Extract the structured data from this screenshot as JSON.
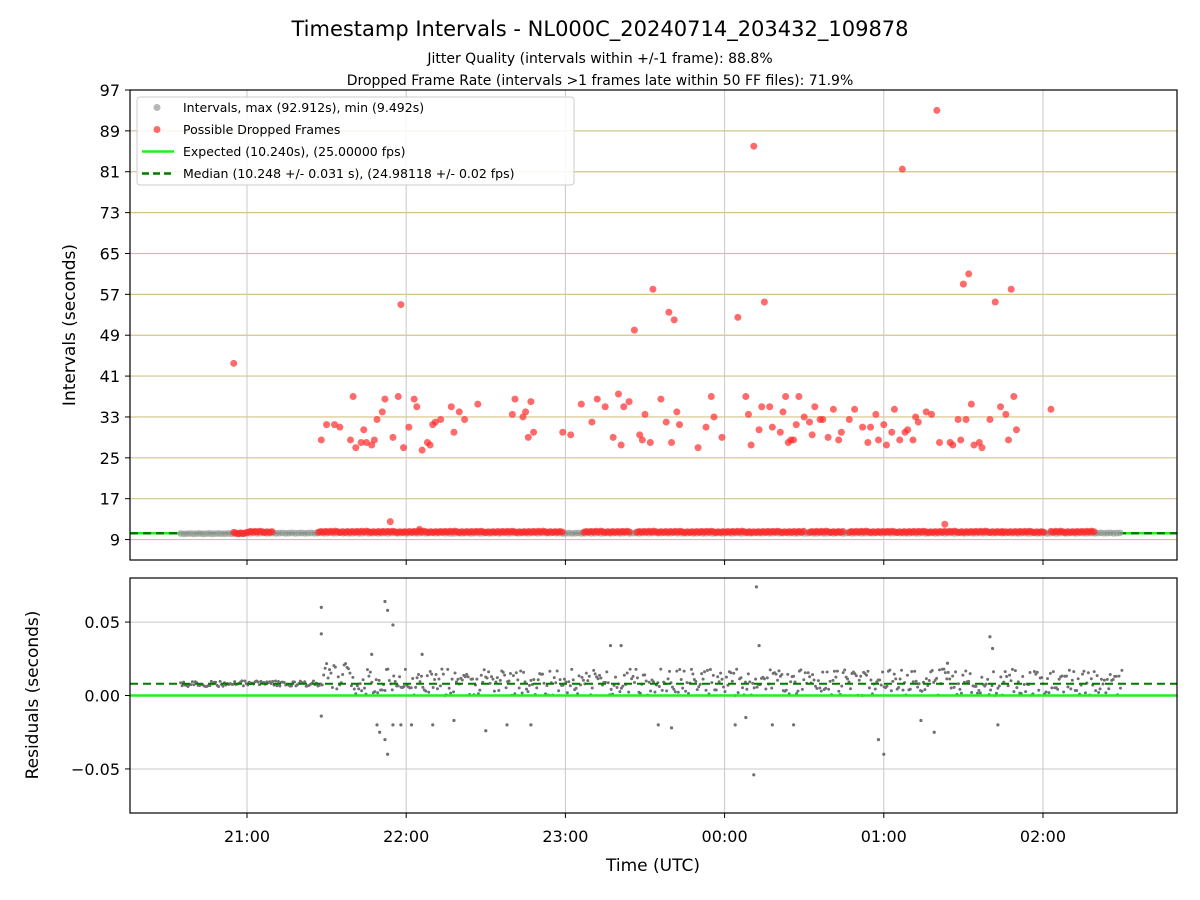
{
  "chart_data": {
    "type": "scatter",
    "title": "Timestamp Intervals - NL000C_20240714_203432_109878",
    "subtitles": [
      "Jitter Quality (intervals within +/-1 frame): 88.8%",
      "Dropped Frame Rate (intervals >1 frames late within 50 FF files): 71.9%"
    ],
    "xlabel": "Time (UTC)",
    "x_ticks": [
      "21:00",
      "22:00",
      "23:00",
      "00:00",
      "01:00",
      "02:00"
    ],
    "top_panel": {
      "ylabel": "Intervals (seconds)",
      "ylim": [
        5,
        97
      ],
      "y_ticks": [
        9,
        17,
        25,
        33,
        41,
        49,
        57,
        65,
        73,
        81,
        89,
        97
      ],
      "grid_horizontal": true,
      "grid_vertical": true,
      "legend_position": "upper-left",
      "legend": [
        "Intervals, max (92.912s), min (9.492s)",
        "Possible Dropped Frames",
        "Expected (10.240s), (25.00000 fps)",
        "Median (10.248 +/- 0.031 s), (24.98118 +/- 0.02 fps)"
      ],
      "expected_interval": 10.24,
      "median_interval": 10.248,
      "colors": {
        "normal": "#999999",
        "dropped": "#ff2b2b",
        "expected": "#22ee22",
        "median": "#007a00",
        "hgrid": "#d4c38a"
      },
      "dropped_points": [
        {
          "t": "20:55",
          "v": 43.5
        },
        {
          "t": "21:28",
          "v": 28.5
        },
        {
          "t": "21:30",
          "v": 31.5
        },
        {
          "t": "21:33",
          "v": 31.5
        },
        {
          "t": "21:35",
          "v": 31.0
        },
        {
          "t": "21:39",
          "v": 28.5
        },
        {
          "t": "21:40",
          "v": 37.0
        },
        {
          "t": "21:41",
          "v": 27.0
        },
        {
          "t": "21:43",
          "v": 28.0
        },
        {
          "t": "21:44",
          "v": 30.5
        },
        {
          "t": "21:45",
          "v": 28.0
        },
        {
          "t": "21:47",
          "v": 27.5
        },
        {
          "t": "21:48",
          "v": 28.5
        },
        {
          "t": "21:49",
          "v": 32.5
        },
        {
          "t": "21:51",
          "v": 34.0
        },
        {
          "t": "21:52",
          "v": 36.5
        },
        {
          "t": "21:54",
          "v": 12.5
        },
        {
          "t": "21:55",
          "v": 29.0
        },
        {
          "t": "21:57",
          "v": 37.0
        },
        {
          "t": "21:58",
          "v": 55.0
        },
        {
          "t": "21:59",
          "v": 27.0
        },
        {
          "t": "22:01",
          "v": 31.0
        },
        {
          "t": "22:03",
          "v": 36.5
        },
        {
          "t": "22:04",
          "v": 35.0
        },
        {
          "t": "22:05",
          "v": 11.0
        },
        {
          "t": "22:06",
          "v": 26.5
        },
        {
          "t": "22:08",
          "v": 28.0
        },
        {
          "t": "22:09",
          "v": 27.5
        },
        {
          "t": "22:10",
          "v": 31.5
        },
        {
          "t": "22:11",
          "v": 32.0
        },
        {
          "t": "22:13",
          "v": 32.5
        },
        {
          "t": "22:17",
          "v": 35.0
        },
        {
          "t": "22:18",
          "v": 30.0
        },
        {
          "t": "22:20",
          "v": 34.0
        },
        {
          "t": "22:22",
          "v": 32.5
        },
        {
          "t": "22:27",
          "v": 35.5
        },
        {
          "t": "22:40",
          "v": 33.5
        },
        {
          "t": "22:41",
          "v": 36.5
        },
        {
          "t": "22:44",
          "v": 33.0
        },
        {
          "t": "22:45",
          "v": 34.0
        },
        {
          "t": "22:46",
          "v": 29.0
        },
        {
          "t": "22:47",
          "v": 36.0
        },
        {
          "t": "22:48",
          "v": 30.0
        },
        {
          "t": "22:59",
          "v": 30.0
        },
        {
          "t": "23:02",
          "v": 29.5
        },
        {
          "t": "23:06",
          "v": 35.5
        },
        {
          "t": "23:10",
          "v": 32.0
        },
        {
          "t": "23:12",
          "v": 36.5
        },
        {
          "t": "23:15",
          "v": 35.0
        },
        {
          "t": "23:18",
          "v": 29.0
        },
        {
          "t": "23:20",
          "v": 37.5
        },
        {
          "t": "23:21",
          "v": 27.5
        },
        {
          "t": "23:22",
          "v": 35.0
        },
        {
          "t": "23:24",
          "v": 36.0
        },
        {
          "t": "23:26",
          "v": 50.0
        },
        {
          "t": "23:28",
          "v": 29.5
        },
        {
          "t": "23:29",
          "v": 28.5
        },
        {
          "t": "23:30",
          "v": 33.5
        },
        {
          "t": "23:32",
          "v": 28.0
        },
        {
          "t": "23:33",
          "v": 58.0
        },
        {
          "t": "23:36",
          "v": 36.5
        },
        {
          "t": "23:38",
          "v": 32.0
        },
        {
          "t": "23:39",
          "v": 53.5
        },
        {
          "t": "23:41",
          "v": 52.0
        },
        {
          "t": "23:40",
          "v": 28.0
        },
        {
          "t": "23:42",
          "v": 34.0
        },
        {
          "t": "23:43",
          "v": 31.5
        },
        {
          "t": "23:50",
          "v": 27.0
        },
        {
          "t": "23:53",
          "v": 31.0
        },
        {
          "t": "23:55",
          "v": 37.0
        },
        {
          "t": "23:56",
          "v": 33.0
        },
        {
          "t": "23:59",
          "v": 29.0
        },
        {
          "t": "00:05",
          "v": 52.5
        },
        {
          "t": "00:08",
          "v": 37.0
        },
        {
          "t": "00:09",
          "v": 33.5
        },
        {
          "t": "00:10",
          "v": 27.5
        },
        {
          "t": "00:11",
          "v": 86.0
        },
        {
          "t": "00:13",
          "v": 30.5
        },
        {
          "t": "00:14",
          "v": 35.0
        },
        {
          "t": "00:15",
          "v": 55.5
        },
        {
          "t": "00:17",
          "v": 35.0
        },
        {
          "t": "00:18",
          "v": 31.0
        },
        {
          "t": "00:21",
          "v": 30.0
        },
        {
          "t": "00:22",
          "v": 34.0
        },
        {
          "t": "00:23",
          "v": 37.0
        },
        {
          "t": "00:24",
          "v": 28.0
        },
        {
          "t": "00:25",
          "v": 28.5
        },
        {
          "t": "00:26",
          "v": 28.5
        },
        {
          "t": "00:27",
          "v": 31.5
        },
        {
          "t": "00:28",
          "v": 37.0
        },
        {
          "t": "00:30",
          "v": 33.0
        },
        {
          "t": "00:32",
          "v": 32.0
        },
        {
          "t": "00:33",
          "v": 29.5
        },
        {
          "t": "00:34",
          "v": 35.0
        },
        {
          "t": "00:36",
          "v": 32.5
        },
        {
          "t": "00:37",
          "v": 32.5
        },
        {
          "t": "00:39",
          "v": 29.0
        },
        {
          "t": "00:41",
          "v": 34.5
        },
        {
          "t": "00:43",
          "v": 28.5
        },
        {
          "t": "00:44",
          "v": 30.0
        },
        {
          "t": "00:47",
          "v": 32.5
        },
        {
          "t": "00:49",
          "v": 34.5
        },
        {
          "t": "00:52",
          "v": 31.0
        },
        {
          "t": "00:54",
          "v": 28.0
        },
        {
          "t": "00:55",
          "v": 31.0
        },
        {
          "t": "00:57",
          "v": 33.5
        },
        {
          "t": "00:58",
          "v": 28.5
        },
        {
          "t": "01:00",
          "v": 31.5
        },
        {
          "t": "01:01",
          "v": 27.5
        },
        {
          "t": "01:03",
          "v": 30.0
        },
        {
          "t": "01:04",
          "v": 34.5
        },
        {
          "t": "01:06",
          "v": 28.5
        },
        {
          "t": "01:07",
          "v": 81.5
        },
        {
          "t": "01:08",
          "v": 30.0
        },
        {
          "t": "01:09",
          "v": 30.5
        },
        {
          "t": "01:11",
          "v": 28.5
        },
        {
          "t": "01:12",
          "v": 33.0
        },
        {
          "t": "01:13",
          "v": 32.0
        },
        {
          "t": "01:16",
          "v": 34.0
        },
        {
          "t": "01:18",
          "v": 33.5
        },
        {
          "t": "01:20",
          "v": 93.0
        },
        {
          "t": "01:21",
          "v": 28.0
        },
        {
          "t": "01:23",
          "v": 12.0
        },
        {
          "t": "01:25",
          "v": 28.0
        },
        {
          "t": "01:26",
          "v": 27.5
        },
        {
          "t": "01:28",
          "v": 32.5
        },
        {
          "t": "01:29",
          "v": 28.5
        },
        {
          "t": "01:30",
          "v": 59.0
        },
        {
          "t": "01:31",
          "v": 32.5
        },
        {
          "t": "01:32",
          "v": 61.0
        },
        {
          "t": "01:33",
          "v": 35.5
        },
        {
          "t": "01:34",
          "v": 27.5
        },
        {
          "t": "01:36",
          "v": 28.0
        },
        {
          "t": "01:37",
          "v": 27.0
        },
        {
          "t": "01:40",
          "v": 32.5
        },
        {
          "t": "01:42",
          "v": 55.5
        },
        {
          "t": "01:44",
          "v": 35.0
        },
        {
          "t": "01:46",
          "v": 33.5
        },
        {
          "t": "01:47",
          "v": 28.5
        },
        {
          "t": "01:48",
          "v": 58.0
        },
        {
          "t": "01:49",
          "v": 37.0
        },
        {
          "t": "01:50",
          "v": 30.5
        },
        {
          "t": "02:03",
          "v": 34.5
        }
      ]
    },
    "bottom_panel": {
      "ylabel": "Residuals (seconds)",
      "ylim": [
        -0.08,
        0.08
      ],
      "y_ticks": [
        "0.05",
        "0.00",
        "−0.05"
      ],
      "y_tick_values": [
        0.05,
        0.0,
        -0.05
      ],
      "expected_residual": 0.0,
      "median_residual": 0.008,
      "grid_horizontal": true,
      "grid_vertical": true,
      "colors": {
        "points": "#707070",
        "expected": "#22ee22",
        "median": "#007a00",
        "grid": "#c8c8c8"
      },
      "outliers": [
        {
          "t": "21:28",
          "v": 0.06
        },
        {
          "t": "21:28",
          "v": 0.042
        },
        {
          "t": "21:28",
          "v": -0.014
        },
        {
          "t": "21:47",
          "v": 0.028
        },
        {
          "t": "21:49",
          "v": -0.02
        },
        {
          "t": "21:50",
          "v": -0.025
        },
        {
          "t": "21:52",
          "v": -0.03
        },
        {
          "t": "21:55",
          "v": -0.02
        },
        {
          "t": "21:52",
          "v": 0.064
        },
        {
          "t": "21:53",
          "v": 0.058
        },
        {
          "t": "21:55",
          "v": 0.048
        },
        {
          "t": "21:58",
          "v": -0.02
        },
        {
          "t": "22:02",
          "v": -0.02
        },
        {
          "t": "22:06",
          "v": 0.028
        },
        {
          "t": "21:53",
          "v": -0.04
        },
        {
          "t": "22:10",
          "v": -0.02
        },
        {
          "t": "22:18",
          "v": -0.017
        },
        {
          "t": "22:30",
          "v": -0.024
        },
        {
          "t": "22:38",
          "v": -0.02
        },
        {
          "t": "22:47",
          "v": -0.02
        },
        {
          "t": "23:17",
          "v": 0.034
        },
        {
          "t": "23:21",
          "v": 0.034
        },
        {
          "t": "23:35",
          "v": -0.02
        },
        {
          "t": "23:40",
          "v": -0.022
        },
        {
          "t": "00:04",
          "v": -0.02
        },
        {
          "t": "00:08",
          "v": -0.015
        },
        {
          "t": "00:11",
          "v": -0.054
        },
        {
          "t": "00:12",
          "v": 0.074
        },
        {
          "t": "00:13",
          "v": 0.034
        },
        {
          "t": "00:18",
          "v": -0.02
        },
        {
          "t": "00:26",
          "v": -0.02
        },
        {
          "t": "01:00",
          "v": -0.04
        },
        {
          "t": "00:58",
          "v": -0.03
        },
        {
          "t": "01:14",
          "v": -0.017
        },
        {
          "t": "01:19",
          "v": -0.025
        },
        {
          "t": "01:24",
          "v": 0.022
        },
        {
          "t": "01:40",
          "v": 0.04
        },
        {
          "t": "01:43",
          "v": -0.02
        },
        {
          "t": "01:41",
          "v": 0.032
        }
      ]
    }
  }
}
